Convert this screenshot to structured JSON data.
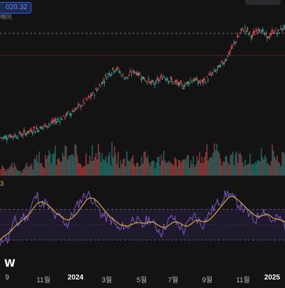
{
  "price_badge": {
    "value": "020.32",
    "subtitle": "배이"
  },
  "indicator_value_label": "3",
  "logo_text": "W",
  "x_axis_labels": [
    "9",
    "11월",
    "2024",
    "3월",
    "5월",
    "7월",
    "9월",
    "11월",
    "2025"
  ],
  "colors": {
    "background": "#131313",
    "up_candle": "#26a69a",
    "down_candle": "#ef5350",
    "osc_line": "#7e57c2",
    "osc_signal": "#e0b43a",
    "osc_band": "#2a2040",
    "price_line": "#e04040",
    "dashed_line": "#8a8f98",
    "badge_blue": "#2962ff"
  },
  "chart_data": {
    "type": "candlestick",
    "x_ticks": [
      "9",
      "11월",
      "2024",
      "3월",
      "5월",
      "7월",
      "9월",
      "11월",
      "2025"
    ],
    "price_series_close": [
      40,
      40,
      41,
      41,
      41,
      42,
      42,
      43,
      44,
      45,
      45,
      46,
      47,
      48,
      49,
      50,
      51,
      52,
      54,
      55,
      57,
      58,
      60,
      62,
      64,
      66,
      69,
      72,
      75,
      78,
      80,
      82,
      80,
      77,
      76,
      78,
      80,
      79,
      77,
      75,
      74,
      72,
      73,
      75,
      77,
      76,
      74,
      73,
      72,
      71,
      72,
      74,
      75,
      74,
      73,
      74,
      76,
      78,
      80,
      82,
      85,
      88,
      92,
      96,
      100,
      104,
      106,
      103,
      101,
      104,
      106,
      103,
      100,
      102,
      105,
      103,
      106
    ],
    "volume_series": [
      0.3,
      0.2,
      0.3,
      0.4,
      0.3,
      0.2,
      0.3,
      0.5,
      0.4,
      0.6,
      0.7,
      0.5,
      0.6,
      0.8,
      0.9,
      0.6,
      0.7,
      1.0,
      0.8,
      0.7,
      0.9,
      0.6,
      0.5,
      0.8,
      1.0,
      0.7,
      0.9,
      0.8,
      0.6,
      0.7,
      1.0,
      0.8,
      0.5,
      0.6,
      0.9,
      0.7,
      0.6,
      0.5,
      0.7,
      0.8,
      0.6,
      0.5,
      0.7,
      0.6,
      0.8,
      0.5,
      0.4,
      0.6,
      0.5,
      0.7,
      0.6,
      0.5,
      0.6,
      0.8,
      0.7,
      0.9,
      0.8,
      1.0,
      0.9,
      0.7,
      0.8,
      0.6,
      0.9,
      0.7,
      0.8,
      0.6,
      0.5,
      0.7,
      0.6,
      0.5,
      0.8,
      0.6,
      0.7,
      0.9,
      0.6,
      0.5,
      0.7
    ],
    "oscillator": [
      20,
      35,
      30,
      45,
      55,
      50,
      62,
      58,
      70,
      82,
      88,
      75,
      80,
      72,
      65,
      58,
      62,
      55,
      50,
      60,
      70,
      78,
      85,
      90,
      88,
      80,
      72,
      65,
      60,
      58,
      55,
      48,
      42,
      50,
      45,
      55,
      60,
      52,
      48,
      55,
      58,
      50,
      45,
      40,
      48,
      55,
      60,
      52,
      48,
      42,
      50,
      58,
      62,
      55,
      50,
      58,
      65,
      72,
      78,
      82,
      88,
      92,
      85,
      80,
      75,
      70,
      65,
      60,
      55,
      62,
      70,
      65,
      58,
      52,
      60,
      55,
      50
    ],
    "oscillator_signal": [
      30,
      35,
      38,
      42,
      48,
      52,
      56,
      60,
      65,
      72,
      78,
      80,
      78,
      75,
      70,
      65,
      62,
      58,
      56,
      58,
      62,
      68,
      75,
      82,
      85,
      84,
      80,
      74,
      68,
      62,
      58,
      54,
      50,
      49,
      48,
      50,
      52,
      53,
      52,
      52,
      54,
      53,
      50,
      47,
      46,
      49,
      53,
      54,
      52,
      49,
      48,
      51,
      55,
      56,
      54,
      54,
      57,
      62,
      68,
      74,
      80,
      86,
      87,
      84,
      80,
      75,
      70,
      66,
      62,
      60,
      62,
      64,
      62,
      58,
      57,
      56,
      54
    ],
    "oscillator_band": [
      30,
      70
    ]
  }
}
